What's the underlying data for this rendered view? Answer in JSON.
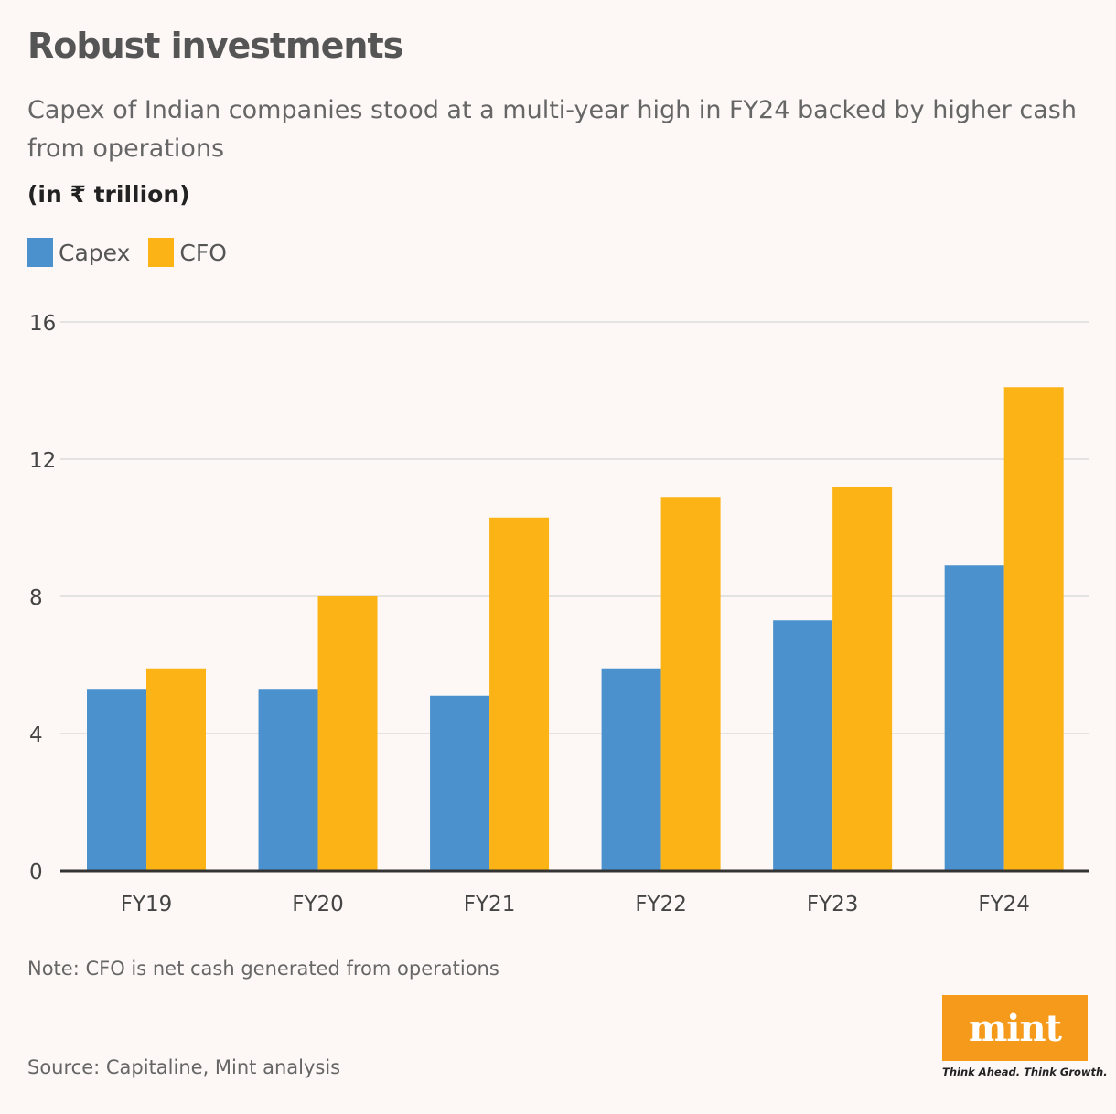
{
  "title": "Robust investments",
  "subtitle": "Capex of Indian companies stood at a multi-year high in FY24 backed by higher cash from operations",
  "unit": "(in ₹ trillion)",
  "note": "Note: CFO is net cash generated from operations",
  "source": "Source: Capitaline, Mint analysis",
  "logo": {
    "wordmark": "mint",
    "tagline": "Think Ahead. Think Growth."
  },
  "colors": {
    "capex": "#4a91cd",
    "cfo": "#fbb316",
    "grid": "#dcdcdc",
    "axis": "#333333"
  },
  "chart_data": {
    "type": "bar",
    "categories": [
      "FY19",
      "FY20",
      "FY21",
      "FY22",
      "FY23",
      "FY24"
    ],
    "series": [
      {
        "name": "Capex",
        "values": [
          5.3,
          5.3,
          5.1,
          5.9,
          7.3,
          8.9
        ]
      },
      {
        "name": "CFO",
        "values": [
          5.9,
          8.0,
          10.3,
          10.9,
          11.2,
          14.1
        ]
      }
    ],
    "ylim": [
      0,
      16
    ],
    "yticks": [
      0,
      4,
      8,
      12,
      16
    ],
    "grid": true,
    "legend": "top-left"
  }
}
